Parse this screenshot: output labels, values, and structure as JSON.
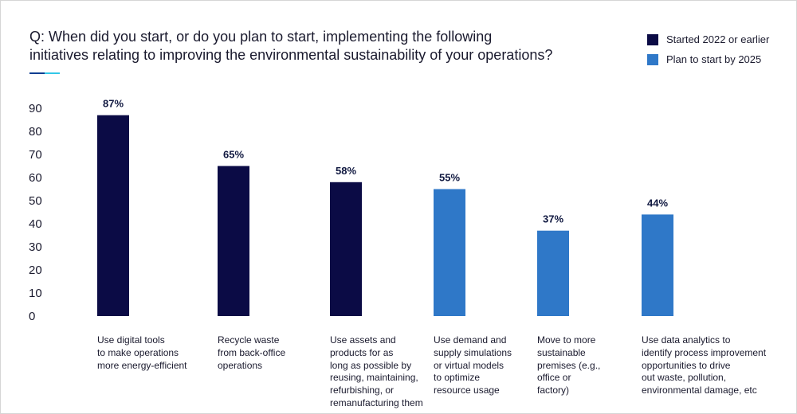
{
  "header": {
    "title_lines": [
      "Q: When did you start, or do you plan to start, implementing the following",
      "initiatives relating to improving the environmental sustainability of your operations?"
    ]
  },
  "accent_colors": [
    "#0a3d91",
    "#33c7e8"
  ],
  "legend": [
    {
      "label": "Started 2022 or earlier",
      "color": "#0b0b45"
    },
    {
      "label": "Plan to start by 2025",
      "color": "#2f78c8"
    }
  ],
  "chart_data": {
    "type": "bar",
    "ylim": [
      0,
      90
    ],
    "yticks": [
      0,
      10,
      20,
      30,
      40,
      50,
      60,
      70,
      80,
      90
    ],
    "grid": false,
    "bars": [
      {
        "category_lines": [
          "Use digital tools",
          "to make operations",
          "more energy-efficient"
        ],
        "value": 87,
        "value_label": "87%",
        "series": "Started 2022 or earlier"
      },
      {
        "category_lines": [
          "Recycle waste",
          "from back-office",
          "operations"
        ],
        "value": 65,
        "value_label": "65%",
        "series": "Started 2022 or earlier"
      },
      {
        "category_lines": [
          "Use assets and",
          "products for as",
          "long as possible by",
          "reusing, maintaining,",
          "refurbishing, or",
          "remanufacturing them"
        ],
        "value": 58,
        "value_label": "58%",
        "series": "Started 2022 or earlier"
      },
      {
        "category_lines": [
          "Use demand and",
          "supply simulations",
          "or virtual models",
          "to optimize",
          "resource usage"
        ],
        "value": 55,
        "value_label": "55%",
        "series": "Plan to start by 2025"
      },
      {
        "category_lines": [
          "Move to more",
          "sustainable",
          "premises (e.g.,",
          "office or",
          "factory)"
        ],
        "value": 37,
        "value_label": "37%",
        "series": "Plan to start by 2025"
      },
      {
        "category_lines": [
          "Use data analytics to",
          "identify process improvement",
          "opportunities to drive",
          "out waste, pollution,",
          "environmental damage, etc"
        ],
        "value": 44,
        "value_label": "44%",
        "series": "Plan to start by 2025"
      }
    ]
  }
}
